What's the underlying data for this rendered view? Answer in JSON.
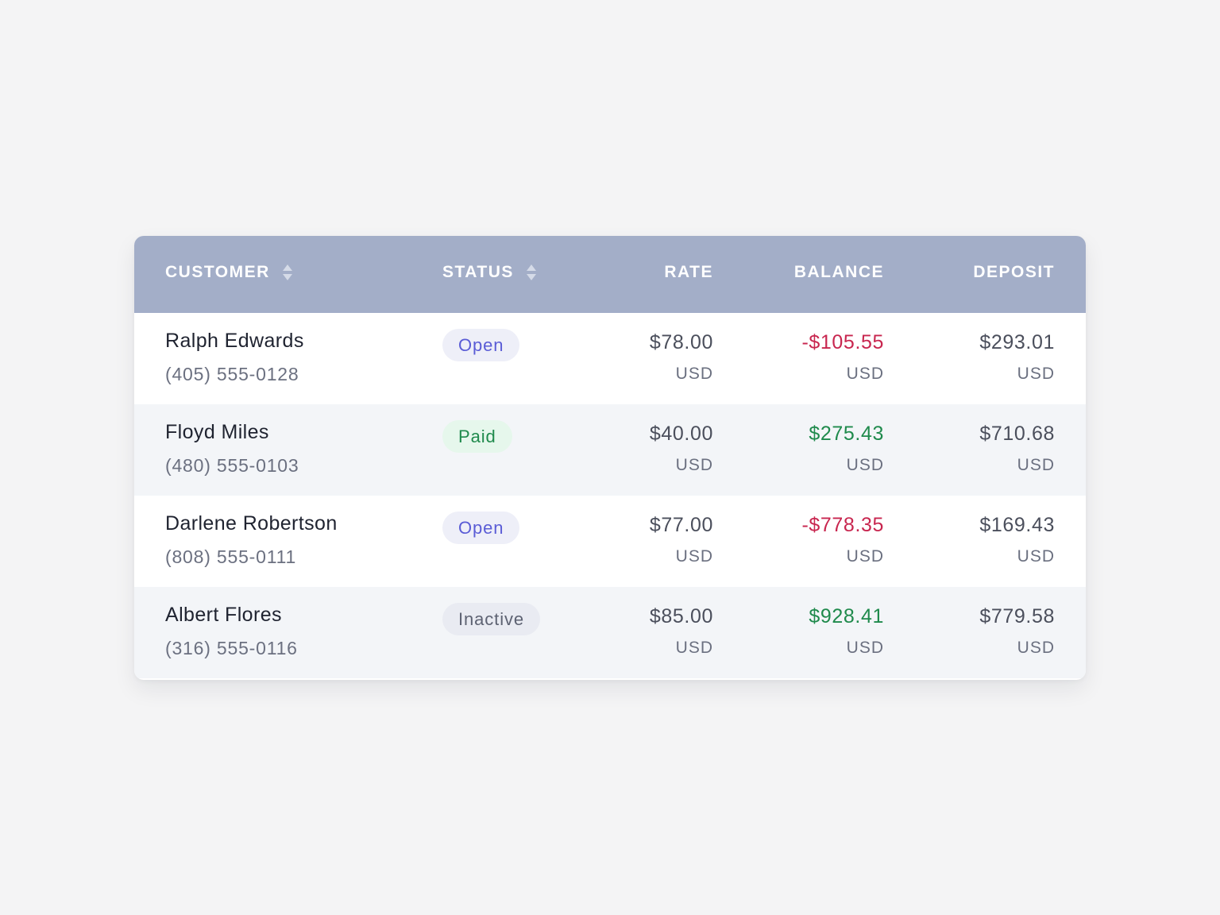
{
  "colors": {
    "header_bg": "#a3aec8",
    "negative": "#c8264f",
    "positive": "#1f8a4c",
    "neutral": "#4b4f5c"
  },
  "headers": {
    "customer": "CUSTOMER",
    "status": "STATUS",
    "rate": "RATE",
    "balance": "BALANCE",
    "deposit": "DEPOSIT"
  },
  "rows": [
    {
      "name": "Ralph Edwards",
      "phone": "(405) 555-0128",
      "status": "Open",
      "status_kind": "open",
      "rate": "$78.00",
      "rate_currency": "USD",
      "balance": "-$105.55",
      "balance_sign": "negative",
      "balance_currency": "USD",
      "deposit": "$293.01",
      "deposit_currency": "USD"
    },
    {
      "name": "Floyd Miles",
      "phone": "(480) 555-0103",
      "status": "Paid",
      "status_kind": "paid",
      "rate": "$40.00",
      "rate_currency": "USD",
      "balance": "$275.43",
      "balance_sign": "positive",
      "balance_currency": "USD",
      "deposit": "$710.68",
      "deposit_currency": "USD"
    },
    {
      "name": "Darlene Robertson",
      "phone": "(808) 555-0111",
      "status": "Open",
      "status_kind": "open",
      "rate": "$77.00",
      "rate_currency": "USD",
      "balance": "-$778.35",
      "balance_sign": "negative",
      "balance_currency": "USD",
      "deposit": "$169.43",
      "deposit_currency": "USD"
    },
    {
      "name": "Albert Flores",
      "phone": "(316) 555-0116",
      "status": "Inactive",
      "status_kind": "inactive",
      "rate": "$85.00",
      "rate_currency": "USD",
      "balance": "$928.41",
      "balance_sign": "positive",
      "balance_currency": "USD",
      "deposit": "$779.58",
      "deposit_currency": "USD"
    }
  ],
  "icons": {
    "sort": "sort-arrows-icon"
  }
}
